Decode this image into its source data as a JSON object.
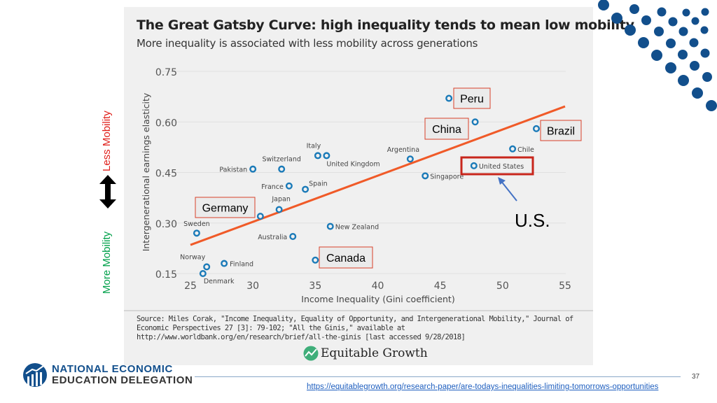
{
  "slide": {
    "side_labels": {
      "less": "Less Mobility",
      "more": "More Mobility",
      "less_color": "#e0201b",
      "more_color": "#00a04a"
    },
    "footer": {
      "org_line1": "NATIONAL ECONOMIC",
      "org_line2": "EDUCATION DELEGATION",
      "page_number": "37",
      "url": "https://equitablegrowth.org/research-paper/are-todays-inequalities-limiting-tomorrows-opportunities"
    },
    "brand_color": "#124f8c"
  },
  "chart_data": {
    "type": "scatter",
    "title": "The Great Gatsby Curve: high inequality tends to mean low mobility",
    "subtitle": "More inequality is associated with less mobility across generations",
    "xlabel": "Income Inequality (Gini coefficient)",
    "ylabel": "Intergenerational earnings elasticity",
    "xlim": [
      25,
      55
    ],
    "ylim": [
      0.15,
      0.75
    ],
    "xticks": [
      "25",
      "30",
      "35",
      "40",
      "45",
      "50",
      "55"
    ],
    "yticks": [
      "0.15",
      "0.30",
      "0.45",
      "0.60",
      "0.75"
    ],
    "grid": "horizontal",
    "point_color": "#1a7ab8",
    "trend_color": "#f05a28",
    "trendline": {
      "x": [
        25,
        55
      ],
      "y": [
        0.235,
        0.646
      ]
    },
    "points": [
      {
        "name": "Denmark",
        "x": 26.0,
        "y": 0.15
      },
      {
        "name": "Norway",
        "x": 26.3,
        "y": 0.17
      },
      {
        "name": "Finland",
        "x": 27.7,
        "y": 0.18
      },
      {
        "name": "Sweden",
        "x": 25.5,
        "y": 0.27
      },
      {
        "name": "Germany",
        "x": 30.6,
        "y": 0.32
      },
      {
        "name": "Japan",
        "x": 32.1,
        "y": 0.34
      },
      {
        "name": "Australia",
        "x": 33.2,
        "y": 0.26
      },
      {
        "name": "Pakistan",
        "x": 30.0,
        "y": 0.46
      },
      {
        "name": "Switzerland",
        "x": 32.3,
        "y": 0.46
      },
      {
        "name": "France",
        "x": 32.9,
        "y": 0.41
      },
      {
        "name": "Spain",
        "x": 34.2,
        "y": 0.4
      },
      {
        "name": "Italy",
        "x": 35.2,
        "y": 0.5
      },
      {
        "name": "United Kingdom",
        "x": 35.9,
        "y": 0.5
      },
      {
        "name": "New Zealand",
        "x": 36.2,
        "y": 0.29
      },
      {
        "name": "Canada",
        "x": 35.0,
        "y": 0.19
      },
      {
        "name": "Argentina",
        "x": 42.6,
        "y": 0.49
      },
      {
        "name": "Singapore",
        "x": 43.8,
        "y": 0.44
      },
      {
        "name": "Peru",
        "x": 45.7,
        "y": 0.67
      },
      {
        "name": "China",
        "x": 47.8,
        "y": 0.6
      },
      {
        "name": "United States",
        "x": 47.7,
        "y": 0.47
      },
      {
        "name": "Chile",
        "x": 50.8,
        "y": 0.52
      },
      {
        "name": "Brazil",
        "x": 52.7,
        "y": 0.58
      }
    ],
    "annotations": {
      "boxed": [
        "Peru",
        "China",
        "Brazil",
        "Germany",
        "Canada"
      ],
      "highlight": "United States",
      "callout": "U.S."
    },
    "source": "Source: Miles Corak, \"Income Inequality, Equality of Opportunity, and Intergenerational Mobility,\" Journal of Economic Perspectives 27 [3]: 79-102; \"All the Ginis,\" available at http://www.worldbank.org/en/research/brief/all-the-ginis [last accessed 9/28/2018]",
    "logo_text": "Equitable Growth"
  }
}
